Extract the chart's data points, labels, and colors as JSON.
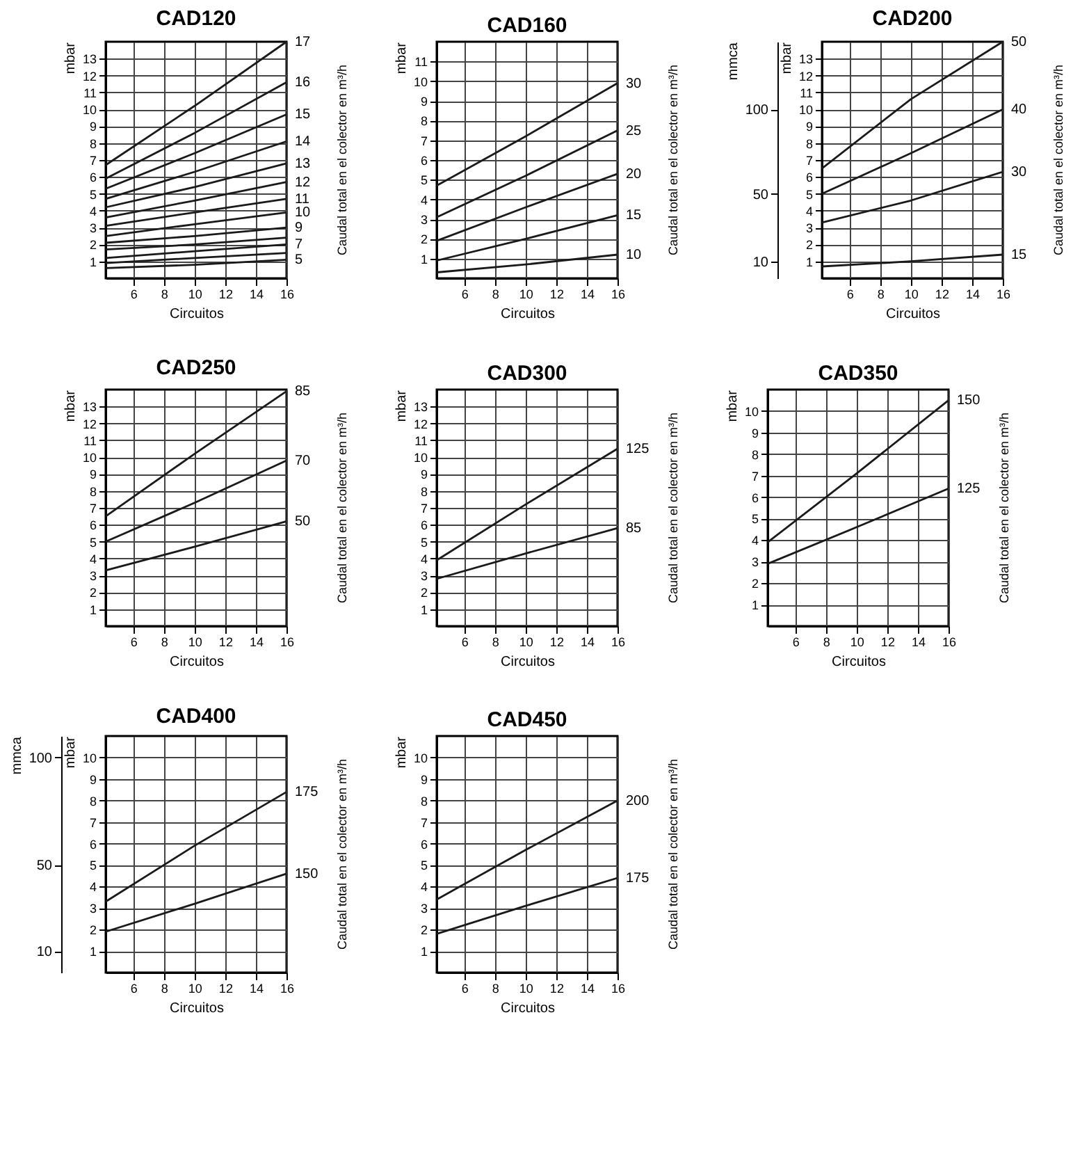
{
  "chart_data": [
    {
      "type": "line",
      "title": "CAD120",
      "xlabel": "Circuitos",
      "ylabel": "mbar",
      "legend_title": "Caudal total en el colector en m³/h",
      "xlim": [
        4.2,
        16
      ],
      "xticks": [
        6,
        8,
        10,
        12,
        14,
        16
      ],
      "ylim": [
        0,
        14
      ],
      "yticks": [
        1,
        2,
        3,
        4,
        5,
        6,
        7,
        8,
        9,
        10,
        11,
        12,
        13
      ],
      "grid": true,
      "legend": false,
      "line_style": "solid",
      "series": [
        {
          "name": "17",
          "color": "#1a1a1a",
          "x": [
            4.2,
            10,
            16
          ],
          "values": [
            6.7,
            10.2,
            14
          ]
        },
        {
          "name": "16",
          "color": "#1a1a1a",
          "x": [
            4.2,
            10,
            16
          ],
          "values": [
            5.9,
            8.6,
            11.6
          ]
        },
        {
          "name": "15",
          "color": "#1a1a1a",
          "x": [
            4.2,
            10,
            16
          ],
          "values": [
            5.3,
            7.4,
            9.7
          ]
        },
        {
          "name": "14",
          "color": "#1a1a1a",
          "x": [
            4.2,
            10,
            16
          ],
          "values": [
            4.7,
            6.3,
            8.1
          ]
        },
        {
          "name": "13",
          "color": "#1a1a1a",
          "x": [
            4.2,
            10,
            16
          ],
          "values": [
            4.2,
            5.4,
            6.8
          ]
        },
        {
          "name": "12",
          "color": "#1a1a1a",
          "x": [
            4.2,
            10,
            16
          ],
          "values": [
            3.6,
            4.6,
            5.7
          ]
        },
        {
          "name": "11",
          "color": "#1a1a1a",
          "x": [
            4.2,
            10,
            16
          ],
          "values": [
            3.1,
            3.9,
            4.7
          ]
        },
        {
          "name": "10",
          "color": "#1a1a1a",
          "x": [
            4.2,
            10,
            16
          ],
          "values": [
            2.5,
            3.2,
            3.9
          ]
        },
        {
          "name": "9",
          "color": "#1a1a1a",
          "x": [
            4.2,
            10,
            16
          ],
          "values": [
            2.1,
            2.5,
            3.0
          ]
        },
        {
          "color": "#1a1a1a",
          "x": [
            4.2,
            10,
            16
          ],
          "values": [
            1.7,
            2.0,
            2.4
          ]
        },
        {
          "name": "7",
          "color": "#1a1a1a",
          "x": [
            4.2,
            10,
            16
          ],
          "values": [
            1.2,
            1.6,
            2.0
          ]
        },
        {
          "color": "#1a1a1a",
          "x": [
            4.2,
            10,
            16
          ],
          "values": [
            0.9,
            1.2,
            1.5
          ]
        },
        {
          "name": "5",
          "color": "#1a1a1a",
          "x": [
            4.2,
            10,
            16
          ],
          "values": [
            0.6,
            0.8,
            1.1
          ]
        }
      ]
    },
    {
      "type": "line",
      "title": "CAD160",
      "xlabel": "Circuitos",
      "ylabel": "mbar",
      "legend_title": "Caudal total en el colector en m³/h",
      "xlim": [
        4.2,
        16
      ],
      "xticks": [
        6,
        8,
        10,
        12,
        14,
        16
      ],
      "ylim": [
        0,
        12
      ],
      "yticks": [
        1,
        2,
        3,
        4,
        5,
        6,
        7,
        8,
        9,
        10,
        11
      ],
      "grid": true,
      "legend": false,
      "line_style": "solid",
      "series": [
        {
          "name": "30",
          "color": "#1a1a1a",
          "x": [
            4.2,
            10,
            16
          ],
          "values": [
            4.7,
            7.2,
            9.9
          ]
        },
        {
          "name": "25",
          "color": "#1a1a1a",
          "x": [
            4.2,
            10,
            16
          ],
          "values": [
            3.1,
            5.2,
            7.5
          ]
        },
        {
          "name": "20",
          "color": "#1a1a1a",
          "x": [
            4.2,
            10,
            16
          ],
          "values": [
            1.9,
            3.6,
            5.3
          ]
        },
        {
          "name": "15",
          "color": "#1a1a1a",
          "x": [
            4.2,
            10,
            16
          ],
          "values": [
            0.9,
            2.0,
            3.2
          ]
        },
        {
          "name": "10",
          "color": "#1a1a1a",
          "x": [
            4.2,
            10,
            16
          ],
          "values": [
            0.3,
            0.7,
            1.2
          ]
        }
      ]
    },
    {
      "type": "line",
      "title": "CAD200",
      "xlabel": "Circuitos",
      "ylabel": "mbar",
      "y2label": "mmca",
      "legend_title": "Caudal total en el colector en m³/h",
      "xlim": [
        4.2,
        16
      ],
      "xticks": [
        6,
        8,
        10,
        12,
        14,
        16
      ],
      "ylim": [
        0,
        14
      ],
      "yticks": [
        1,
        2,
        3,
        4,
        5,
        6,
        7,
        8,
        9,
        10,
        11,
        12,
        13
      ],
      "y2lim": [
        0,
        140
      ],
      "y2ticks": [
        10,
        50,
        100
      ],
      "grid": true,
      "legend": false,
      "line_style": "solid",
      "series": [
        {
          "name": "50",
          "color": "#1a1a1a",
          "x": [
            4.2,
            10,
            16
          ],
          "values": [
            6.5,
            10.6,
            14
          ]
        },
        {
          "name": "40",
          "color": "#1a1a1a",
          "x": [
            4.2,
            10,
            16
          ],
          "values": [
            5.0,
            7.4,
            10.0
          ]
        },
        {
          "name": "30",
          "color": "#1a1a1a",
          "x": [
            4.2,
            10,
            16
          ],
          "values": [
            3.3,
            4.6,
            6.3
          ]
        },
        {
          "name": "15",
          "color": "#1a1a1a",
          "x": [
            4.2,
            10,
            16
          ],
          "values": [
            0.7,
            1.0,
            1.4
          ]
        }
      ]
    },
    {
      "type": "line",
      "title": "CAD250",
      "xlabel": "Circuitos",
      "ylabel": "mbar",
      "legend_title": "Caudal total en el colector en m³/h",
      "xlim": [
        4.2,
        16
      ],
      "xticks": [
        6,
        8,
        10,
        12,
        14,
        16
      ],
      "ylim": [
        0,
        14
      ],
      "yticks": [
        1,
        2,
        3,
        4,
        5,
        6,
        7,
        8,
        9,
        10,
        11,
        12,
        13
      ],
      "grid": true,
      "legend": false,
      "line_style": "solid",
      "series": [
        {
          "name": "85",
          "color": "#1a1a1a",
          "x": [
            4.2,
            10,
            16
          ],
          "values": [
            6.5,
            10.2,
            13.9
          ]
        },
        {
          "name": "70",
          "color": "#1a1a1a",
          "x": [
            4.2,
            10,
            16
          ],
          "values": [
            5.0,
            7.3,
            9.8
          ]
        },
        {
          "name": "50",
          "color": "#1a1a1a",
          "x": [
            4.2,
            10,
            16
          ],
          "values": [
            3.3,
            4.7,
            6.2
          ]
        }
      ]
    },
    {
      "type": "line",
      "title": "CAD300",
      "xlabel": "Circuitos",
      "ylabel": "mbar",
      "legend_title": "Caudal total en el colector en m³/h",
      "xlim": [
        4.2,
        16
      ],
      "xticks": [
        6,
        8,
        10,
        12,
        14,
        16
      ],
      "ylim": [
        0,
        14
      ],
      "yticks": [
        1,
        2,
        3,
        4,
        5,
        6,
        7,
        8,
        9,
        10,
        11,
        12,
        13
      ],
      "grid": true,
      "legend": false,
      "line_style": "solid",
      "series": [
        {
          "name": "125",
          "color": "#1a1a1a",
          "x": [
            4.2,
            10,
            16
          ],
          "values": [
            3.9,
            7.2,
            10.5
          ]
        },
        {
          "name": "85",
          "color": "#1a1a1a",
          "x": [
            4.2,
            10,
            16
          ],
          "values": [
            2.8,
            4.3,
            5.8
          ]
        }
      ]
    },
    {
      "type": "line",
      "title": "CAD350",
      "xlabel": "Circuitos",
      "ylabel": "mbar",
      "legend_title": "Caudal total en el colector en m³/h",
      "xlim": [
        4.2,
        16
      ],
      "xticks": [
        6,
        8,
        10,
        12,
        14,
        16
      ],
      "ylim": [
        0,
        11
      ],
      "yticks": [
        1,
        2,
        3,
        4,
        5,
        6,
        7,
        8,
        9,
        10
      ],
      "grid": true,
      "legend": false,
      "line_style": "solid",
      "series": [
        {
          "name": "150",
          "color": "#1a1a1a",
          "x": [
            4.2,
            10,
            16
          ],
          "values": [
            3.9,
            7.1,
            10.5
          ]
        },
        {
          "name": "125",
          "color": "#1a1a1a",
          "x": [
            4.2,
            10,
            16
          ],
          "values": [
            2.9,
            4.6,
            6.4
          ]
        }
      ]
    },
    {
      "type": "line",
      "title": "CAD400",
      "xlabel": "Circuitos",
      "ylabel": "mbar",
      "y2label": "mmca",
      "legend_title": "Caudal total en el colector en m³/h",
      "xlim": [
        4.2,
        16
      ],
      "xticks": [
        6,
        8,
        10,
        12,
        14,
        16
      ],
      "ylim": [
        0,
        11
      ],
      "yticks": [
        1,
        2,
        3,
        4,
        5,
        6,
        7,
        8,
        9,
        10
      ],
      "y2lim": [
        0,
        110
      ],
      "y2ticks": [
        10,
        50,
        100
      ],
      "grid": true,
      "legend": false,
      "line_style": "solid",
      "series": [
        {
          "name": "175",
          "color": "#1a1a1a",
          "x": [
            4.2,
            10,
            16
          ],
          "values": [
            3.3,
            5.9,
            8.4
          ]
        },
        {
          "name": "150",
          "color": "#1a1a1a",
          "x": [
            4.2,
            10,
            16
          ],
          "values": [
            1.9,
            3.2,
            4.6
          ]
        }
      ]
    },
    {
      "type": "line",
      "title": "CAD450",
      "xlabel": "Circuitos",
      "ylabel": "mbar",
      "legend_title": "Caudal total en el colector en m³/h",
      "xlim": [
        4.2,
        16
      ],
      "xticks": [
        6,
        8,
        10,
        12,
        14,
        16
      ],
      "ylim": [
        0,
        11
      ],
      "yticks": [
        1,
        2,
        3,
        4,
        5,
        6,
        7,
        8,
        9,
        10
      ],
      "grid": true,
      "legend": false,
      "line_style": "solid",
      "series": [
        {
          "name": "200",
          "color": "#1a1a1a",
          "x": [
            4.2,
            10,
            16
          ],
          "values": [
            3.4,
            5.7,
            8.0
          ]
        },
        {
          "name": "175",
          "color": "#1a1a1a",
          "x": [
            4.2,
            10,
            16
          ],
          "values": [
            1.8,
            3.1,
            4.4
          ]
        }
      ]
    }
  ]
}
